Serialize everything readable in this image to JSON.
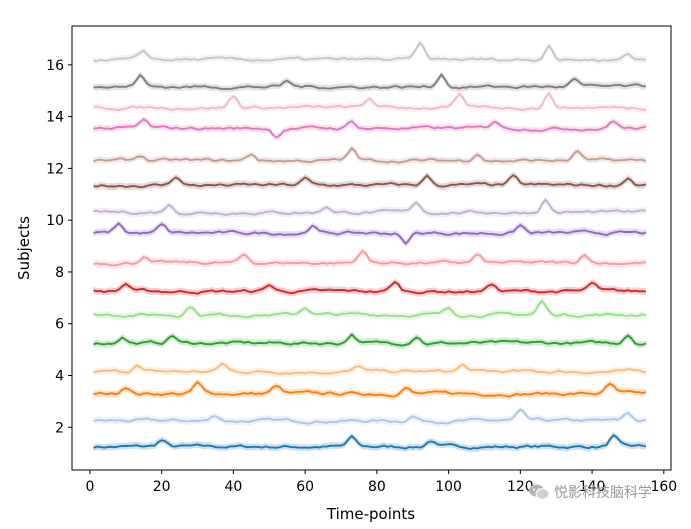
{
  "chart_data": {
    "type": "line",
    "xlabel": "Time-points",
    "ylabel": "Subjects",
    "xlim": [
      -5,
      162
    ],
    "ylim": [
      0.35,
      17.5
    ],
    "x_ticks": [
      0,
      20,
      40,
      60,
      80,
      100,
      120,
      140,
      160
    ],
    "y_ticks": [
      2,
      4,
      6,
      8,
      10,
      12,
      14,
      16
    ],
    "x_tick_labels": [
      "0",
      "20",
      "40",
      "60",
      "80",
      "100",
      "120",
      "140",
      "160"
    ],
    "y_tick_labels": [
      "2",
      "4",
      "6",
      "8",
      "10",
      "12",
      "14",
      "16"
    ],
    "x_range": [
      1,
      155
    ],
    "grid": false,
    "series": [
      {
        "subject": 1,
        "baseline": 1.25,
        "color": "#1f77b4",
        "peaks": [
          [
            20,
            0.25
          ],
          [
            73,
            0.35
          ],
          [
            95,
            0.25
          ],
          [
            146,
            0.4
          ]
        ]
      },
      {
        "subject": 2,
        "baseline": 2.25,
        "color": "#aec7e8",
        "peaks": [
          [
            35,
            0.2
          ],
          [
            90,
            0.2
          ],
          [
            120,
            0.35
          ],
          [
            150,
            0.3
          ]
        ]
      },
      {
        "subject": 3,
        "baseline": 3.3,
        "color": "#ff7f0e",
        "peaks": [
          [
            10,
            0.3
          ],
          [
            30,
            0.4
          ],
          [
            52,
            0.3
          ],
          [
            88,
            0.25
          ],
          [
            145,
            0.35
          ]
        ]
      },
      {
        "subject": 4,
        "baseline": 4.15,
        "color": "#ffbb78",
        "peaks": [
          [
            13,
            0.25
          ],
          [
            37,
            0.3
          ],
          [
            75,
            0.2
          ],
          [
            104,
            0.25
          ]
        ]
      },
      {
        "subject": 5,
        "baseline": 5.25,
        "color": "#2ca02c",
        "peaks": [
          [
            9,
            0.25
          ],
          [
            23,
            0.3
          ],
          [
            73,
            0.35
          ],
          [
            91,
            0.3
          ],
          [
            150,
            0.35
          ]
        ]
      },
      {
        "subject": 6,
        "baseline": 6.35,
        "color": "#98df8a",
        "peaks": [
          [
            28,
            0.35
          ],
          [
            60,
            0.3
          ],
          [
            100,
            0.25
          ],
          [
            126,
            0.5
          ]
        ]
      },
      {
        "subject": 7,
        "baseline": 7.25,
        "color": "#d62728",
        "peaks": [
          [
            10,
            0.3
          ],
          [
            50,
            0.25
          ],
          [
            85,
            0.35
          ],
          [
            112,
            0.3
          ],
          [
            140,
            0.3
          ]
        ]
      },
      {
        "subject": 8,
        "baseline": 8.35,
        "color": "#ff9896",
        "peaks": [
          [
            15,
            0.25
          ],
          [
            43,
            0.3
          ],
          [
            76,
            0.5
          ],
          [
            108,
            0.3
          ],
          [
            138,
            0.35
          ]
        ]
      },
      {
        "subject": 9,
        "baseline": 9.5,
        "color": "#9467bd",
        "peaks": [
          [
            8,
            0.35
          ],
          [
            20,
            0.3
          ],
          [
            62,
            0.3
          ],
          [
            88,
            -0.4
          ],
          [
            120,
            0.3
          ]
        ]
      },
      {
        "subject": 10,
        "baseline": 10.3,
        "color": "#c5b0d5",
        "peaks": [
          [
            22,
            0.3
          ],
          [
            66,
            0.25
          ],
          [
            91,
            0.4
          ],
          [
            127,
            0.5
          ]
        ]
      },
      {
        "subject": 11,
        "baseline": 11.35,
        "color": "#8c564b",
        "peaks": [
          [
            24,
            0.35
          ],
          [
            60,
            0.25
          ],
          [
            94,
            0.35
          ],
          [
            118,
            0.3
          ],
          [
            150,
            0.3
          ]
        ]
      },
      {
        "subject": 12,
        "baseline": 12.3,
        "color": "#c49c94",
        "peaks": [
          [
            14,
            0.2
          ],
          [
            45,
            0.25
          ],
          [
            73,
            0.45
          ],
          [
            108,
            0.3
          ],
          [
            136,
            0.35
          ]
        ]
      },
      {
        "subject": 13,
        "baseline": 13.55,
        "color": "#e377c2",
        "peaks": [
          [
            15,
            0.3
          ],
          [
            52,
            -0.3
          ],
          [
            73,
            0.25
          ],
          [
            113,
            0.3
          ],
          [
            146,
            0.3
          ]
        ]
      },
      {
        "subject": 14,
        "baseline": 14.35,
        "color": "#f7b6d2",
        "peaks": [
          [
            40,
            0.45
          ],
          [
            78,
            0.35
          ],
          [
            103,
            0.45
          ],
          [
            128,
            0.55
          ]
        ]
      },
      {
        "subject": 15,
        "baseline": 15.15,
        "color": "#7f7f7f",
        "peaks": [
          [
            14,
            0.45
          ],
          [
            55,
            0.2
          ],
          [
            98,
            0.5
          ],
          [
            135,
            0.3
          ]
        ]
      },
      {
        "subject": 16,
        "baseline": 16.2,
        "color": "#c7c7c7",
        "peaks": [
          [
            15,
            0.3
          ],
          [
            92,
            0.6
          ],
          [
            128,
            0.6
          ],
          [
            150,
            0.25
          ]
        ]
      }
    ]
  },
  "watermark": {
    "text": "悦影科技脑科学"
  }
}
